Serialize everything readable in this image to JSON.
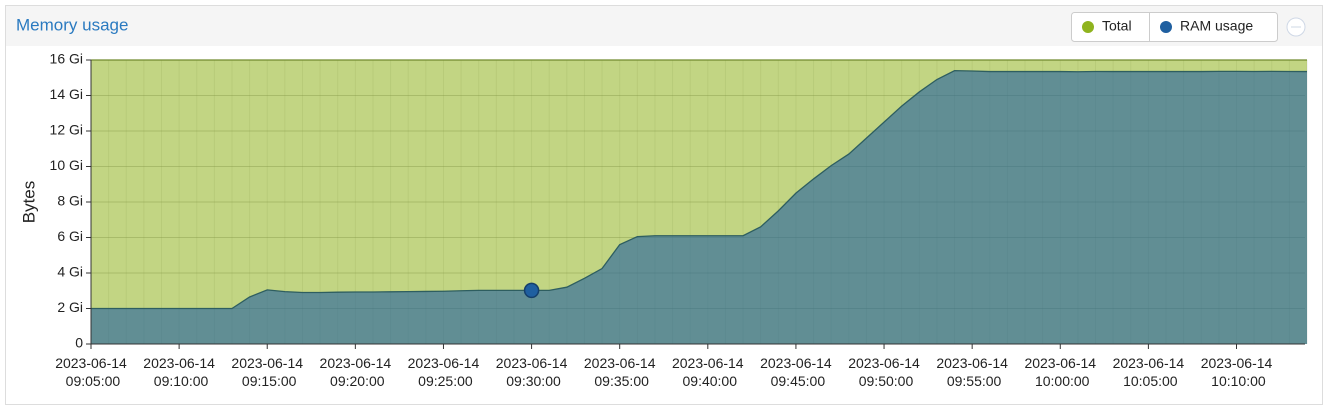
{
  "chart_data": {
    "type": "area",
    "title": "Memory usage",
    "ylabel": "Bytes",
    "x": [
      "2023-06-14 09:05:00",
      "2023-06-14 09:06:00",
      "2023-06-14 09:07:00",
      "2023-06-14 09:08:00",
      "2023-06-14 09:09:00",
      "2023-06-14 09:10:00",
      "2023-06-14 09:11:00",
      "2023-06-14 09:12:00",
      "2023-06-14 09:13:00",
      "2023-06-14 09:14:00",
      "2023-06-14 09:15:00",
      "2023-06-14 09:16:00",
      "2023-06-14 09:17:00",
      "2023-06-14 09:18:00",
      "2023-06-14 09:19:00",
      "2023-06-14 09:20:00",
      "2023-06-14 09:21:00",
      "2023-06-14 09:22:00",
      "2023-06-14 09:23:00",
      "2023-06-14 09:24:00",
      "2023-06-14 09:25:00",
      "2023-06-14 09:26:00",
      "2023-06-14 09:27:00",
      "2023-06-14 09:28:00",
      "2023-06-14 09:29:00",
      "2023-06-14 09:30:00",
      "2023-06-14 09:31:00",
      "2023-06-14 09:32:00",
      "2023-06-14 09:33:00",
      "2023-06-14 09:34:00",
      "2023-06-14 09:35:00",
      "2023-06-14 09:36:00",
      "2023-06-14 09:37:00",
      "2023-06-14 09:38:00",
      "2023-06-14 09:39:00",
      "2023-06-14 09:40:00",
      "2023-06-14 09:41:00",
      "2023-06-14 09:42:00",
      "2023-06-14 09:43:00",
      "2023-06-14 09:44:00",
      "2023-06-14 09:45:00",
      "2023-06-14 09:46:00",
      "2023-06-14 09:47:00",
      "2023-06-14 09:48:00",
      "2023-06-14 09:49:00",
      "2023-06-14 09:50:00",
      "2023-06-14 09:51:00",
      "2023-06-14 09:52:00",
      "2023-06-14 09:53:00",
      "2023-06-14 09:54:00",
      "2023-06-14 09:55:00",
      "2023-06-14 09:56:00",
      "2023-06-14 09:57:00",
      "2023-06-14 09:58:00",
      "2023-06-14 09:59:00",
      "2023-06-14 10:00:00",
      "2023-06-14 10:01:00",
      "2023-06-14 10:02:00",
      "2023-06-14 10:03:00",
      "2023-06-14 10:04:00",
      "2023-06-14 10:05:00",
      "2023-06-14 10:06:00",
      "2023-06-14 10:07:00",
      "2023-06-14 10:08:00",
      "2023-06-14 10:09:00",
      "2023-06-14 10:10:00",
      "2023-06-14 10:11:00",
      "2023-06-14 10:12:00",
      "2023-06-14 10:13:00",
      "2023-06-14 10:14:00"
    ],
    "series": [
      {
        "name": "Total",
        "color": "#8fb31e",
        "values": [
          16,
          16,
          16,
          16,
          16,
          16,
          16,
          16,
          16,
          16,
          16,
          16,
          16,
          16,
          16,
          16,
          16,
          16,
          16,
          16,
          16,
          16,
          16,
          16,
          16,
          16,
          16,
          16,
          16,
          16,
          16,
          16,
          16,
          16,
          16,
          16,
          16,
          16,
          16,
          16,
          16,
          16,
          16,
          16,
          16,
          16,
          16,
          16,
          16,
          16,
          16,
          16,
          16,
          16,
          16,
          16,
          16,
          16,
          16,
          16,
          16,
          16,
          16,
          16,
          16,
          16,
          16,
          16,
          16,
          16
        ]
      },
      {
        "name": "RAM usage",
        "color": "#1f5fa0",
        "values": [
          2.0,
          2.0,
          2.0,
          2.0,
          2.0,
          2.0,
          2.0,
          2.0,
          2.0,
          2.65,
          3.05,
          2.95,
          2.9,
          2.9,
          2.92,
          2.93,
          2.93,
          2.94,
          2.95,
          2.96,
          2.97,
          3.0,
          3.02,
          3.02,
          3.02,
          3.02,
          3.02,
          3.2,
          3.7,
          4.25,
          5.6,
          6.05,
          6.1,
          6.1,
          6.1,
          6.1,
          6.1,
          6.1,
          6.6,
          7.5,
          8.5,
          9.3,
          10.05,
          10.7,
          11.6,
          12.5,
          13.4,
          14.2,
          14.9,
          15.4,
          15.38,
          15.35,
          15.35,
          15.35,
          15.35,
          15.35,
          15.34,
          15.35,
          15.35,
          15.35,
          15.35,
          15.35,
          15.35,
          15.35,
          15.36,
          15.36,
          15.35,
          15.36,
          15.35,
          15.35
        ]
      }
    ],
    "ylim": [
      0,
      16
    ],
    "yticks": [
      0,
      {
        "value": 2,
        "label": "2 Gi"
      },
      {
        "value": 4,
        "label": "4 Gi"
      },
      {
        "value": 6,
        "label": "6 Gi"
      },
      {
        "value": 8,
        "label": "8 Gi"
      },
      {
        "value": 10,
        "label": "10 Gi"
      },
      {
        "value": 12,
        "label": "12 Gi"
      },
      {
        "value": 14,
        "label": "14 Gi"
      },
      {
        "value": 16,
        "label": "16 Gi"
      }
    ],
    "grid": true
  }
}
